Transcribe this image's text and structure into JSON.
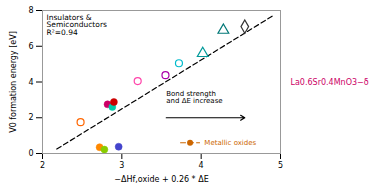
{
  "chart_data": {
    "type": "scatter",
    "xlabel": "−ΔHf,oxide + 0.26 * ΔE",
    "ylabel": "V0 formation energy [eV]",
    "xlim": [
      2,
      5
    ],
    "ylim": [
      0,
      8
    ],
    "xticks": [
      2,
      3,
      4,
      5
    ],
    "yticks": [
      0,
      2,
      4,
      6,
      8
    ],
    "legend": "lower right",
    "series": [
      {
        "type": "line",
        "color": "#000000",
        "line_style": "dashed",
        "x": [
          2.18,
          4.92
        ],
        "values": [
          0.25,
          7.75
        ]
      },
      {
        "type": "scatter",
        "x": [
          2.48,
          2.72,
          2.78,
          2.82,
          2.88,
          2.9,
          2.96,
          3.2,
          3.55,
          3.72,
          4.02,
          4.28,
          4.55
        ],
        "values": [
          1.75,
          0.35,
          0.22,
          2.75,
          2.6,
          2.88,
          0.38,
          4.05,
          4.38,
          5.05,
          5.6,
          6.9,
          7.1
        ],
        "colors": [
          "#ff6600",
          "#ff8800",
          "#88cc00",
          "#cc0066",
          "#00ccaa",
          "#cc0000",
          "#4444cc",
          "#ff44aa",
          "#aa00aa",
          "#00bbcc",
          "#009999",
          "#007777",
          "#333333"
        ],
        "markers": [
          "open circle",
          "circle",
          "circle",
          "circle",
          "circle",
          "circle",
          "circle",
          "open circle",
          "open circle",
          "open circle",
          "open triangle",
          "open triangle",
          "open diamond"
        ]
      }
    ],
    "annotations": [
      {
        "type": "text",
        "text": "Insulators &\nSemiconductors\nR²=0.94"
      },
      {
        "type": "arrow",
        "text": "Bond strength\nand ΔE increase",
        "color": "#000000"
      },
      {
        "type": "legend",
        "text": "Metallic oxides",
        "color": "#cc6600",
        "marker": "circle",
        "line_style": "dashed"
      },
      {
        "type": "caption",
        "text": "La0.6Sr0.4MnO3−δ",
        "color": "#cc0066"
      }
    ]
  }
}
